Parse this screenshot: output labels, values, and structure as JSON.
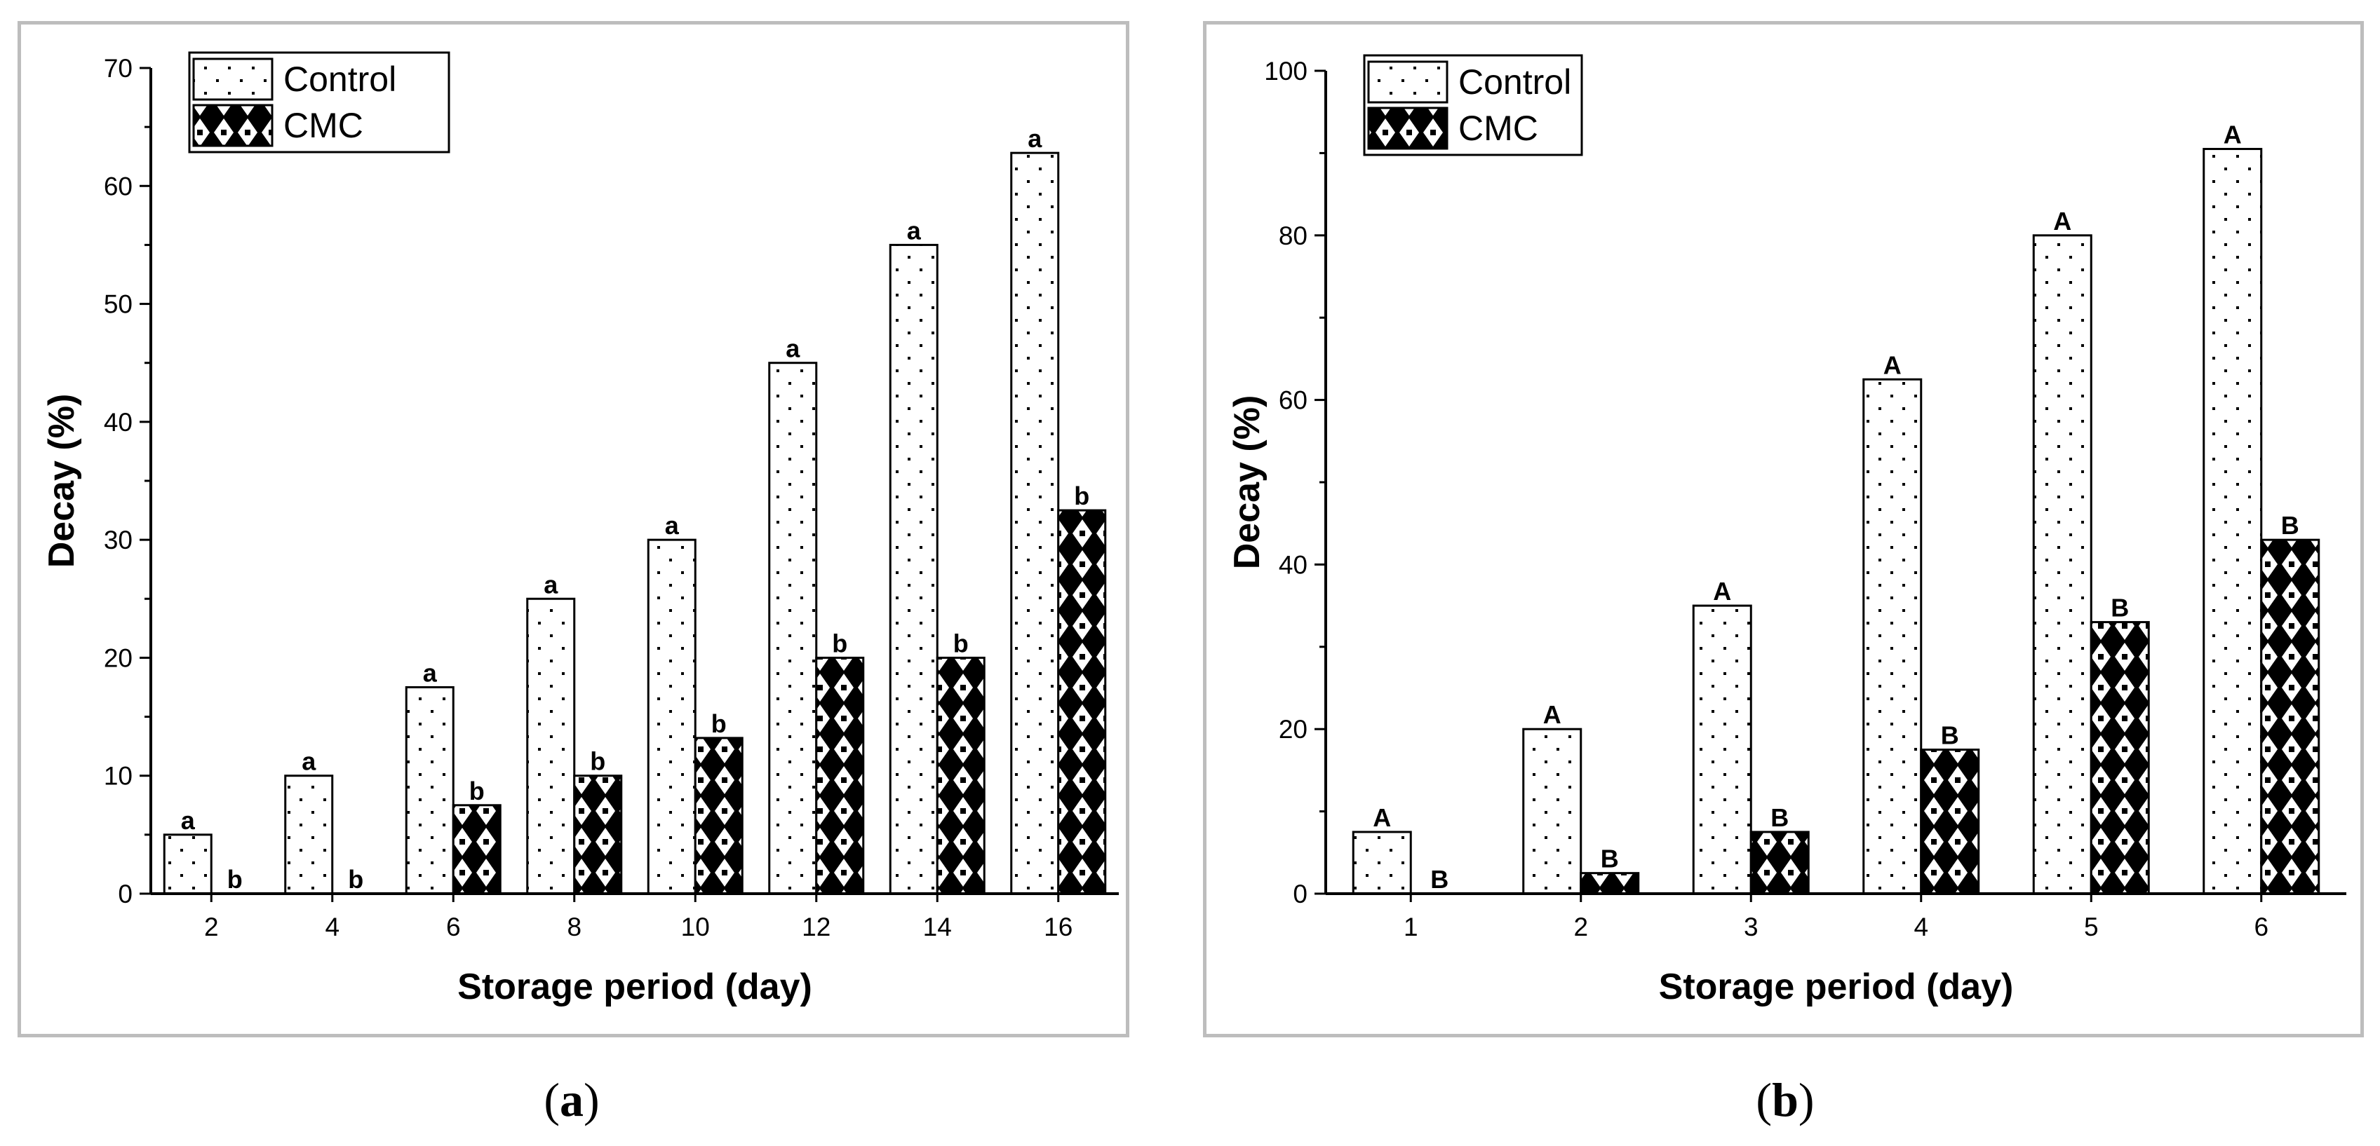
{
  "chart_data": [
    {
      "id": "a",
      "type": "bar",
      "caption": "a",
      "xlabel": "Storage period (day)",
      "ylabel": "Decay (%)",
      "categories": [
        "2",
        "4",
        "6",
        "8",
        "10",
        "12",
        "14",
        "16"
      ],
      "ylim": [
        0,
        70
      ],
      "yticks": [
        0,
        10,
        20,
        30,
        40,
        50,
        60,
        70
      ],
      "series": [
        {
          "name": "Control",
          "pattern": "dots",
          "values": [
            5,
            10,
            17.5,
            25,
            30,
            45,
            55,
            62.8
          ],
          "labels": [
            "a",
            "a",
            "a",
            "a",
            "a",
            "a",
            "a",
            "a"
          ]
        },
        {
          "name": "CMC",
          "pattern": "diamond",
          "values": [
            0,
            0,
            7.5,
            10,
            13.2,
            20,
            20,
            32.5
          ],
          "labels": [
            "b",
            "b",
            "b",
            "b",
            "b",
            "b",
            "b",
            "b"
          ]
        }
      ],
      "legend": {
        "position": "top-left",
        "entries": [
          "Control",
          "CMC"
        ]
      }
    },
    {
      "id": "b",
      "type": "bar",
      "caption": "b",
      "xlabel": "Storage period (day)",
      "ylabel": "Decay (%)",
      "categories": [
        "1",
        "2",
        "3",
        "4",
        "5",
        "6"
      ],
      "ylim": [
        0,
        100
      ],
      "yticks": [
        0,
        20,
        40,
        60,
        80,
        100
      ],
      "series": [
        {
          "name": "Control",
          "pattern": "dots",
          "values": [
            7.5,
            20,
            35,
            62.5,
            80,
            90.5
          ],
          "labels": [
            "A",
            "A",
            "A",
            "A",
            "A",
            "A"
          ]
        },
        {
          "name": "CMC",
          "pattern": "diamond",
          "values": [
            0,
            2.5,
            7.5,
            17.5,
            33,
            43
          ],
          "labels": [
            "B",
            "B",
            "B",
            "B",
            "B",
            "B"
          ]
        }
      ],
      "legend": {
        "position": "top-left",
        "entries": [
          "Control",
          "CMC"
        ]
      }
    }
  ],
  "captions": {
    "a": "a",
    "b": "b"
  }
}
